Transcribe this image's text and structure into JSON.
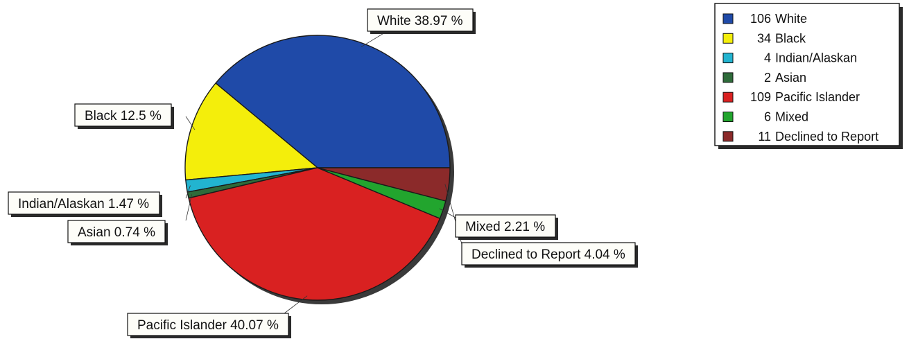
{
  "chart_data": {
    "type": "pie",
    "start": "3 o'clock",
    "direction": "counter-clockwise",
    "slices": [
      {
        "label": "White",
        "count": 106,
        "percent": 38.97,
        "color": "#1f4aa8",
        "callout": "White 38.97 %",
        "legend": "106 White"
      },
      {
        "label": "Black",
        "count": 34,
        "percent": 12.5,
        "color": "#f4ee0b",
        "callout": "Black 12.5 %",
        "legend": "34 Black"
      },
      {
        "label": "Indian/Alaskan",
        "count": 4,
        "percent": 1.47,
        "color": "#22b4d0",
        "callout": "Indian/Alaskan 1.47 %",
        "legend": "4 Indian/Alaskan"
      },
      {
        "label": "Asian",
        "count": 2,
        "percent": 0.74,
        "color": "#2e6b3a",
        "callout": "Asian 0.74 %",
        "legend": "2 Asian"
      },
      {
        "label": "Pacific Islander",
        "count": 109,
        "percent": 40.07,
        "color": "#d92121",
        "callout": "Pacific Islander 40.07 %",
        "legend": "109 Pacific Islander"
      },
      {
        "label": "Mixed",
        "count": 6,
        "percent": 2.21,
        "color": "#22a52e",
        "callout": "Mixed 2.21 %",
        "legend": "6 Mixed"
      },
      {
        "label": "Declined to Report",
        "count": 11,
        "percent": 4.04,
        "color": "#8b2a2a",
        "callout": "Declined to Report 4.04 %",
        "legend": "11 Declined to Report"
      }
    ],
    "legend_position": "top-right"
  }
}
